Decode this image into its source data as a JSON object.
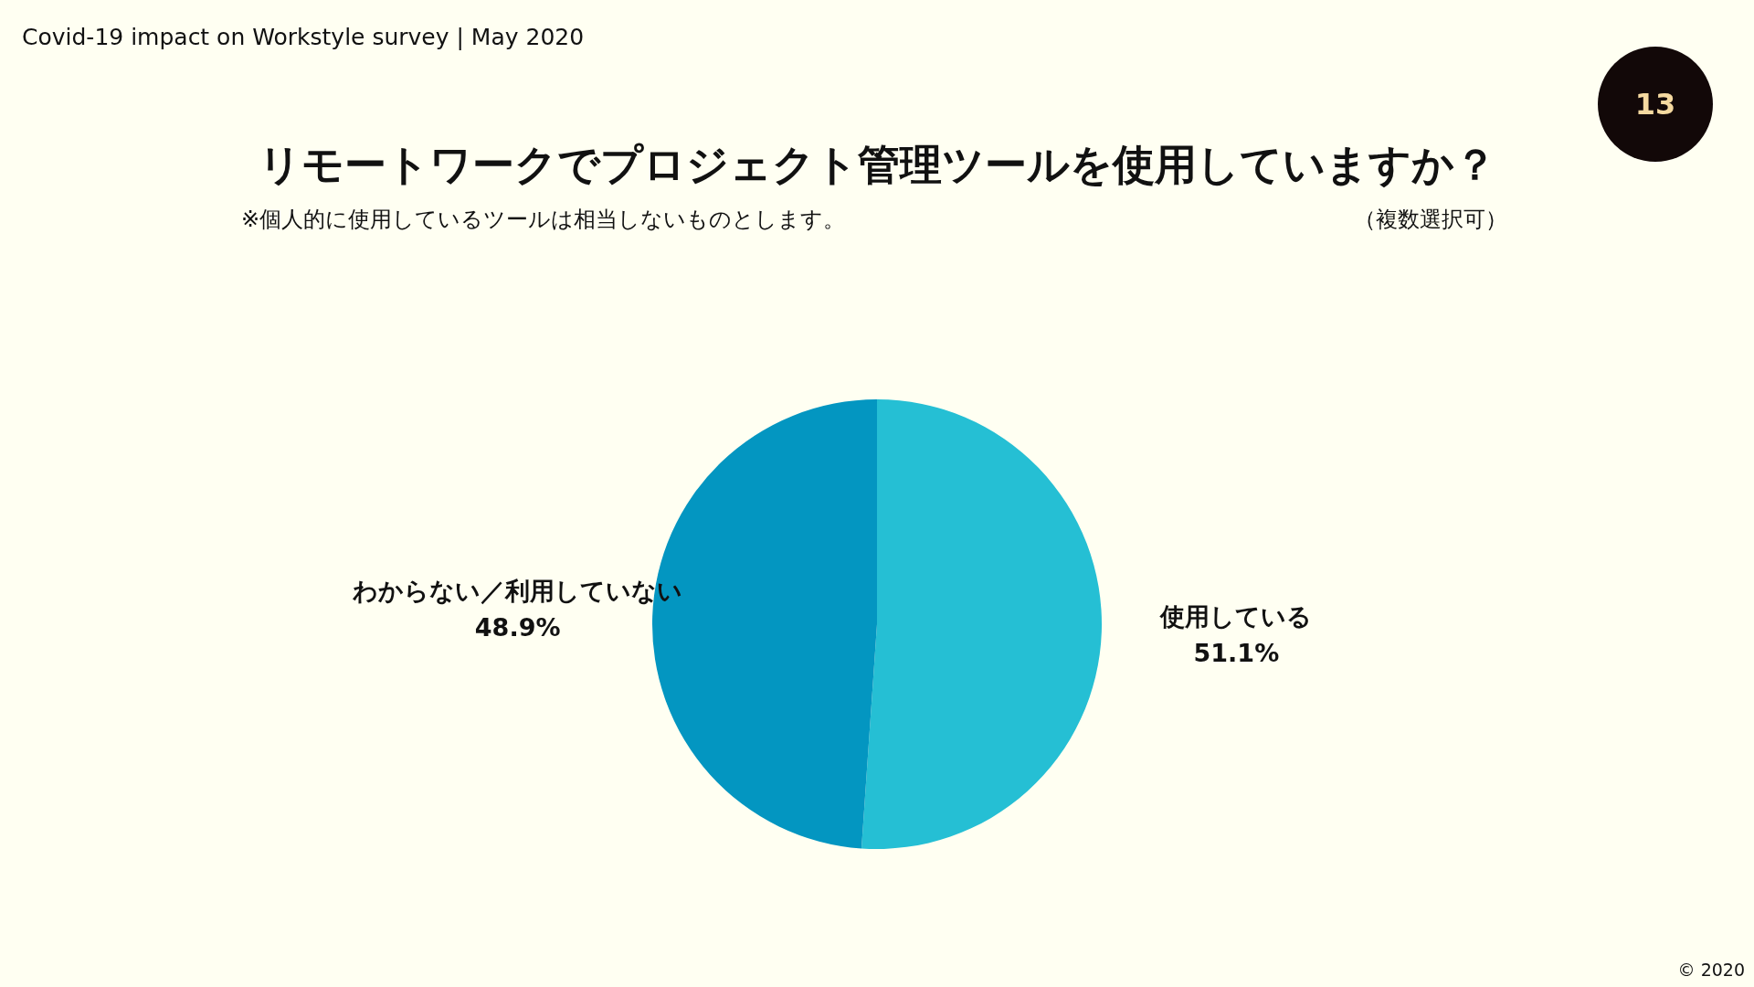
{
  "chart_data": {
    "type": "pie",
    "title": "リモートワークでプロジェクト管理ツールを使用していますか？",
    "subtitle": "※個人的に使用しているツールは相当しないものとします。",
    "annotations": [
      "Covid-19 impact on Workstyle survey | May 2020",
      "（複数選択可）",
      "13",
      "© 2020"
    ],
    "categories": [
      "使用している",
      "わからない／利用していない"
    ],
    "values": [
      51.1,
      48.9
    ],
    "value_labels": [
      "51.1%",
      "48.9%"
    ],
    "colors": [
      "#25bfd4",
      "#0396c1"
    ],
    "legend": false
  }
}
